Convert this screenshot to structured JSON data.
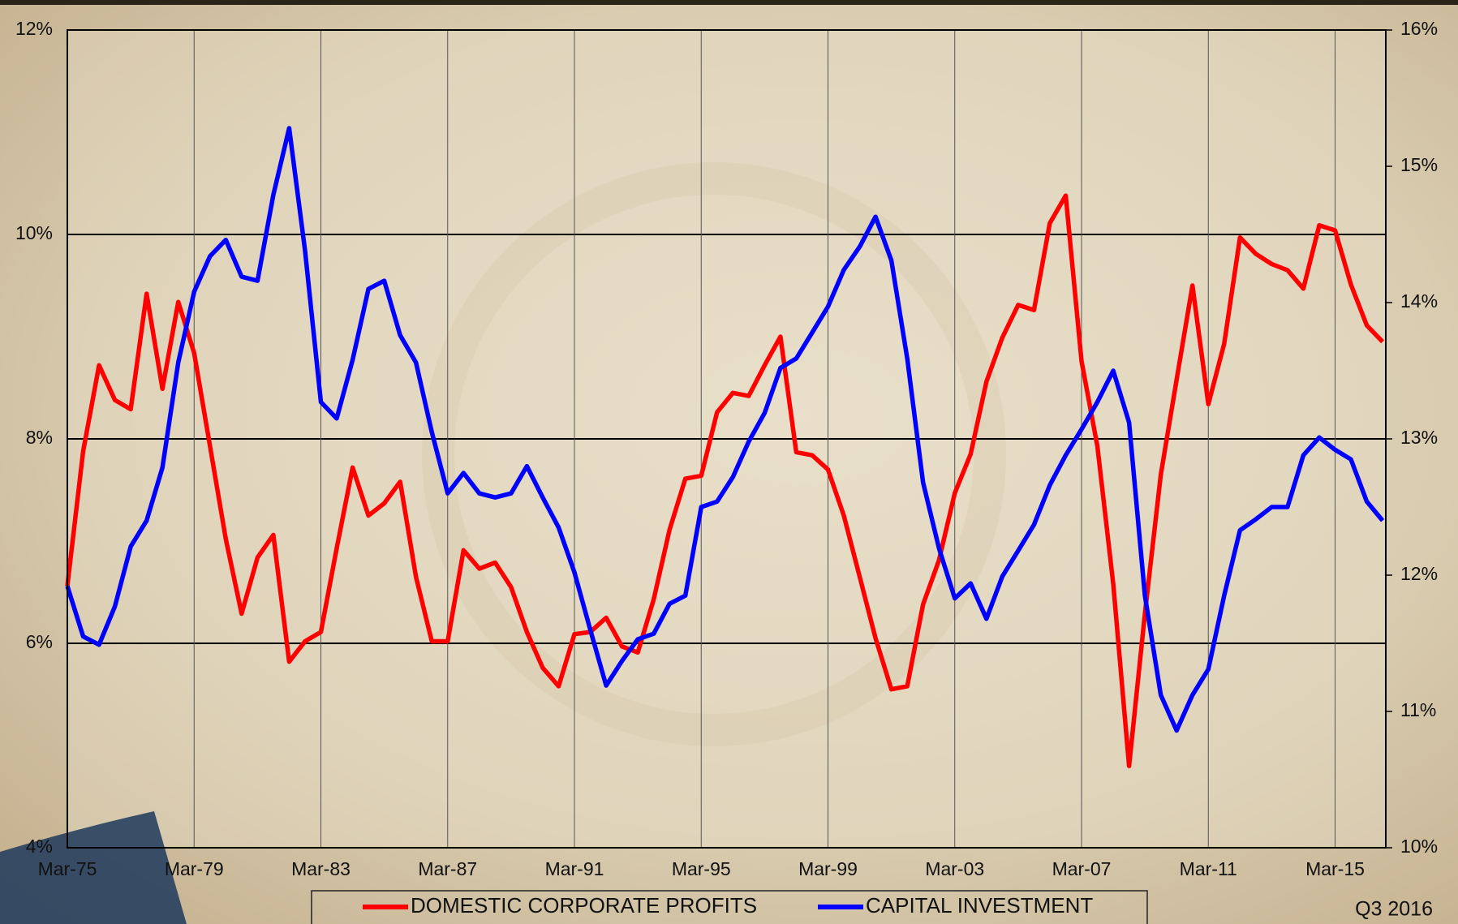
{
  "chart_data": {
    "type": "line",
    "x": [
      1975,
      1975.5,
      1976,
      1976.5,
      1977,
      1977.5,
      1978,
      1978.5,
      1979,
      1979.5,
      1980,
      1980.5,
      1981,
      1981.5,
      1982,
      1982.5,
      1983,
      1983.5,
      1984,
      1984.5,
      1985,
      1985.5,
      1986,
      1986.5,
      1987,
      1987.5,
      1988,
      1988.5,
      1989,
      1989.5,
      1990,
      1990.5,
      1991,
      1991.5,
      1992,
      1992.5,
      1993,
      1993.5,
      1994,
      1994.5,
      1995,
      1995.5,
      1996,
      1996.5,
      1997,
      1997.5,
      1998,
      1998.5,
      1999,
      1999.5,
      2000,
      2000.5,
      2001,
      2001.5,
      2002,
      2002.5,
      2003,
      2003.5,
      2004,
      2004.5,
      2005,
      2005.5,
      2006,
      2006.5,
      2007,
      2007.5,
      2008,
      2008.5,
      2009,
      2009.5,
      2010,
      2010.5,
      2011,
      2011.5,
      2012,
      2012.5,
      2013,
      2013.5,
      2014,
      2014.5,
      2015,
      2015.5,
      2016,
      2016.5
    ],
    "xlim": [
      1975,
      2016.6
    ],
    "xticks": [
      {
        "value": 1975,
        "label": "Mar-75"
      },
      {
        "value": 1979,
        "label": "Mar-79"
      },
      {
        "value": 1983,
        "label": "Mar-83"
      },
      {
        "value": 1987,
        "label": "Mar-87"
      },
      {
        "value": 1991,
        "label": "Mar-91"
      },
      {
        "value": 1995,
        "label": "Mar-95"
      },
      {
        "value": 1999,
        "label": "Mar-99"
      },
      {
        "value": 2003,
        "label": "Mar-03"
      },
      {
        "value": 2007,
        "label": "Mar-07"
      },
      {
        "value": 2011,
        "label": "Mar-11"
      },
      {
        "value": 2015,
        "label": "Mar-15"
      }
    ],
    "ylim": [
      4,
      12
    ],
    "yticks": [
      {
        "value": 4,
        "label": "4%"
      },
      {
        "value": 6,
        "label": "6%"
      },
      {
        "value": 8,
        "label": "8%"
      },
      {
        "value": 10,
        "label": "10%"
      },
      {
        "value": 12,
        "label": "12%"
      }
    ],
    "y2lim": [
      10,
      16
    ],
    "y2ticks": [
      {
        "value": 10,
        "label": "10%"
      },
      {
        "value": 11,
        "label": "11%"
      },
      {
        "value": 12,
        "label": "12%"
      },
      {
        "value": 13,
        "label": "13%"
      },
      {
        "value": 14,
        "label": "14%"
      },
      {
        "value": 15,
        "label": "15%"
      },
      {
        "value": 16,
        "label": "16%"
      }
    ],
    "grid": true,
    "legend": "bottom",
    "annotation": "Q3 2016",
    "series": [
      {
        "name": "DOMESTIC CORPORATE PROFITS",
        "color": "#ff0000",
        "values": [
          6.56,
          7.88,
          8.72,
          8.38,
          8.29,
          9.42,
          8.49,
          9.34,
          8.84,
          7.93,
          7.02,
          6.29,
          6.84,
          7.06,
          5.82,
          6.02,
          6.11,
          6.93,
          7.72,
          7.25,
          7.37,
          7.58,
          6.65,
          6.02,
          6.02,
          6.91,
          6.73,
          6.79,
          6.55,
          6.11,
          5.76,
          5.58,
          6.09,
          6.11,
          6.25,
          5.97,
          5.91,
          6.43,
          7.11,
          7.61,
          7.64,
          8.26,
          8.45,
          8.42,
          8.72,
          9.0,
          7.87,
          7.84,
          7.7,
          7.25,
          6.65,
          6.05,
          5.55,
          5.58,
          6.38,
          6.81,
          7.47,
          7.85,
          8.56,
          8.99,
          9.31,
          9.26,
          10.11,
          10.38,
          8.76,
          7.93,
          6.58,
          4.8,
          6.29,
          7.65,
          8.58,
          9.5,
          8.34,
          8.93,
          9.97,
          9.81,
          9.71,
          9.65,
          9.47,
          10.09,
          10.04,
          9.51,
          9.11,
          8.95
        ]
      },
      {
        "name": "CAPITAL INVESTMENT",
        "color": "#0000ff",
        "axis": "y2",
        "values": [
          11.92,
          11.55,
          11.49,
          11.77,
          12.21,
          12.4,
          12.79,
          13.56,
          14.08,
          14.34,
          14.46,
          14.19,
          14.16,
          14.79,
          15.28,
          14.38,
          13.27,
          13.15,
          13.58,
          14.1,
          14.16,
          13.76,
          13.56,
          13.05,
          12.6,
          12.75,
          12.6,
          12.57,
          12.6,
          12.8,
          12.57,
          12.35,
          12.02,
          11.6,
          11.19,
          11.37,
          11.53,
          11.57,
          11.79,
          11.85,
          12.5,
          12.54,
          12.72,
          12.98,
          13.19,
          13.52,
          13.59,
          13.78,
          13.97,
          14.24,
          14.41,
          14.63,
          14.31,
          13.59,
          12.68,
          12.2,
          11.83,
          11.94,
          11.68,
          11.99,
          12.18,
          12.37,
          12.66,
          12.88,
          13.07,
          13.27,
          13.5,
          13.12,
          11.85,
          11.12,
          10.86,
          11.12,
          11.31,
          11.85,
          12.33,
          12.41,
          12.5,
          12.5,
          12.88,
          13.01,
          12.92,
          12.85,
          12.54,
          12.4
        ]
      }
    ]
  }
}
